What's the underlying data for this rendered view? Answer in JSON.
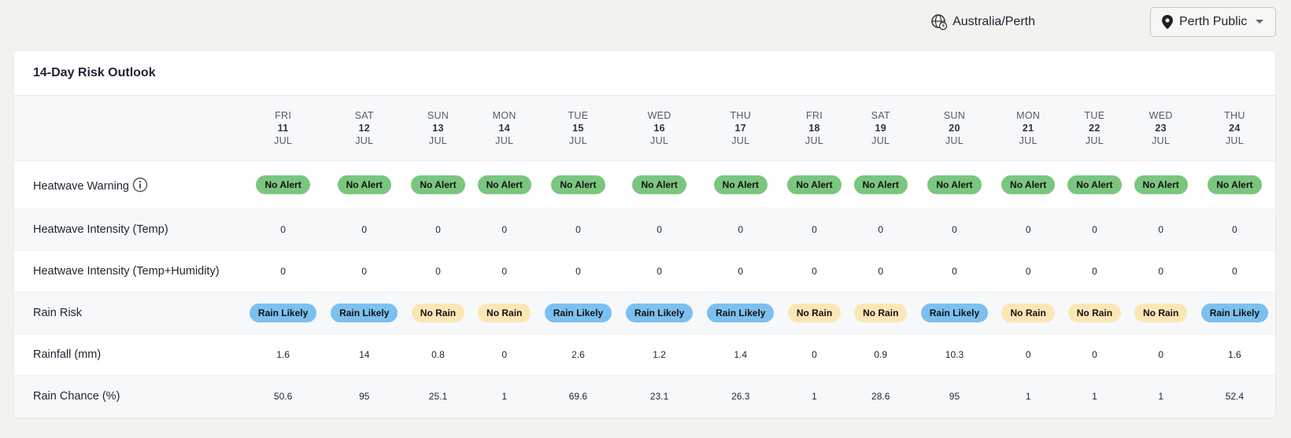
{
  "header": {
    "timezone": "Australia/Perth",
    "location": "Perth Public"
  },
  "outlook": {
    "title": "14-Day Risk Outlook",
    "days": [
      {
        "weekday": "FRI",
        "day": 11,
        "month": "JUL"
      },
      {
        "weekday": "SAT",
        "day": 12,
        "month": "JUL"
      },
      {
        "weekday": "SUN",
        "day": 13,
        "month": "JUL"
      },
      {
        "weekday": "MON",
        "day": 14,
        "month": "JUL"
      },
      {
        "weekday": "TUE",
        "day": 15,
        "month": "JUL"
      },
      {
        "weekday": "WED",
        "day": 16,
        "month": "JUL"
      },
      {
        "weekday": "THU",
        "day": 17,
        "month": "JUL"
      },
      {
        "weekday": "FRI",
        "day": 18,
        "month": "JUL"
      },
      {
        "weekday": "SAT",
        "day": 19,
        "month": "JUL"
      },
      {
        "weekday": "SUN",
        "day": 20,
        "month": "JUL"
      },
      {
        "weekday": "MON",
        "day": 21,
        "month": "JUL"
      },
      {
        "weekday": "TUE",
        "day": 22,
        "month": "JUL"
      },
      {
        "weekday": "WED",
        "day": 23,
        "month": "JUL"
      },
      {
        "weekday": "THU",
        "day": 24,
        "month": "JUL"
      }
    ],
    "rows": [
      {
        "label": "Heatwave Warning",
        "info": true,
        "badge": true,
        "color": "#7bc67e",
        "values": [
          "No Alert",
          "No Alert",
          "No Alert",
          "No Alert",
          "No Alert",
          "No Alert",
          "No Alert",
          "No Alert",
          "No Alert",
          "No Alert",
          "No Alert",
          "No Alert",
          "No Alert",
          "No Alert"
        ]
      },
      {
        "label": "Heatwave Intensity (Temp)",
        "values": [
          0,
          0,
          0,
          0,
          0,
          0,
          0,
          0,
          0,
          0,
          0,
          0,
          0,
          0
        ]
      },
      {
        "label": "Heatwave Intensity (Temp+Humidity)",
        "values": [
          0,
          0,
          0,
          0,
          0,
          0,
          0,
          0,
          0,
          0,
          0,
          0,
          0,
          0
        ]
      },
      {
        "label": "Rain Risk",
        "badge": true,
        "colors": [
          "#7cc0f0",
          "#7cc0f0",
          "#fde6b6",
          "#fde6b6",
          "#7cc0f0",
          "#7cc0f0",
          "#7cc0f0",
          "#fde6b6",
          "#fde6b6",
          "#7cc0f0",
          "#fde6b6",
          "#fde6b6",
          "#fde6b6",
          "#7cc0f0"
        ],
        "values": [
          "Rain Likely",
          "Rain Likely",
          "No Rain",
          "No Rain",
          "Rain Likely",
          "Rain Likely",
          "Rain Likely",
          "No Rain",
          "No Rain",
          "Rain Likely",
          "No Rain",
          "No Rain",
          "No Rain",
          "Rain Likely"
        ]
      },
      {
        "label": "Rainfall (mm)",
        "values": [
          1.6,
          14,
          0.8,
          0,
          2.6,
          1.2,
          1.4,
          0,
          0.9,
          10.3,
          0,
          0,
          0,
          1.6
        ]
      },
      {
        "label": "Rain Chance (%)",
        "values": [
          50.6,
          95,
          25.1,
          1,
          69.6,
          23.1,
          26.3,
          1,
          28.6,
          95,
          1,
          1,
          1,
          52.4
        ]
      }
    ]
  }
}
